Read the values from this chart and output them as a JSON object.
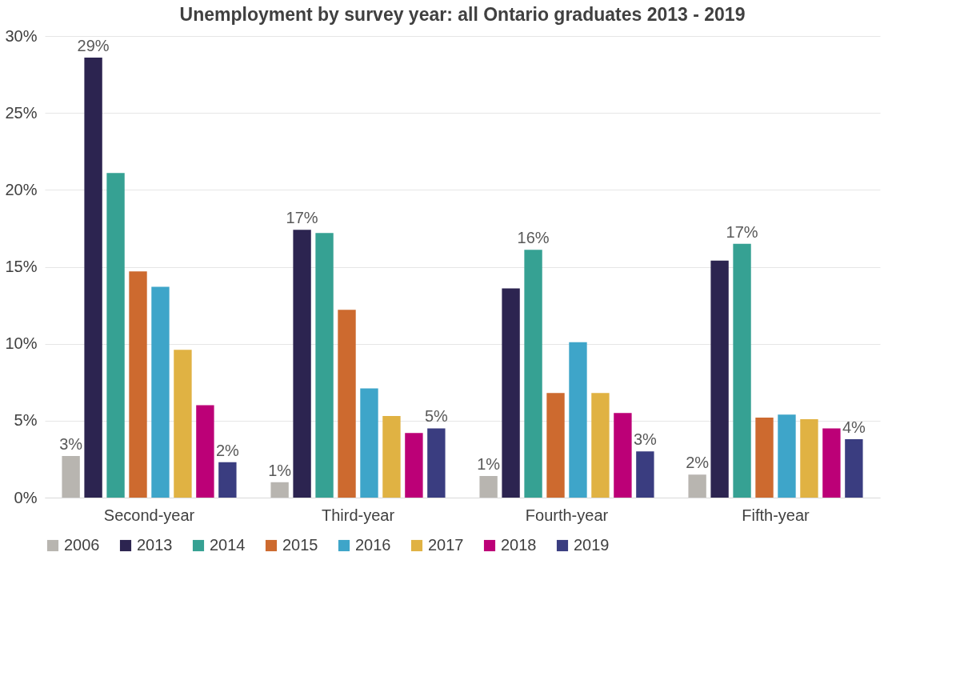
{
  "chart_data": {
    "type": "bar",
    "title": "Unemployment by survey year: all Ontario graduates 2013 - 2019",
    "categories": [
      "Second-year",
      "Third-year",
      "Fourth-year",
      "Fifth-year"
    ],
    "series": [
      {
        "name": "2006",
        "color": "#b8b5b0",
        "values": [
          2.7,
          1.0,
          1.4,
          1.5
        ],
        "value_labels": [
          "3%",
          "1%",
          "1%",
          "2%"
        ]
      },
      {
        "name": "2013",
        "color": "#2c2450",
        "values": [
          28.6,
          17.4,
          13.6,
          15.4
        ],
        "value_labels": [
          "29%",
          "17%",
          null,
          null
        ]
      },
      {
        "name": "2014",
        "color": "#36a193",
        "values": [
          21.1,
          17.2,
          16.1,
          16.5
        ],
        "value_labels": [
          null,
          null,
          "16%",
          "17%"
        ]
      },
      {
        "name": "2015",
        "color": "#cd6a2f",
        "values": [
          14.7,
          12.2,
          6.8,
          5.2
        ]
      },
      {
        "name": "2016",
        "color": "#3ea5c9",
        "values": [
          13.7,
          7.1,
          10.1,
          5.4
        ]
      },
      {
        "name": "2017",
        "color": "#e0b243",
        "values": [
          9.6,
          5.3,
          6.8,
          5.1
        ]
      },
      {
        "name": "2018",
        "color": "#bc0077",
        "values": [
          6.0,
          4.2,
          5.5,
          4.5
        ]
      },
      {
        "name": "2019",
        "color": "#3a3d80",
        "values": [
          2.3,
          4.5,
          3.0,
          3.8
        ],
        "value_labels": [
          "2%",
          "5%",
          "3%",
          "4%"
        ]
      }
    ],
    "ylim": [
      0,
      30
    ],
    "yticks": [
      {
        "value": 0,
        "label": "0%"
      },
      {
        "value": 5,
        "label": "5%"
      },
      {
        "value": 10,
        "label": "10%"
      },
      {
        "value": 15,
        "label": "15%"
      },
      {
        "value": 20,
        "label": "20%"
      },
      {
        "value": 25,
        "label": "25%"
      },
      {
        "value": 30,
        "label": "30%"
      }
    ],
    "grid": "y",
    "legend": "bottom"
  }
}
